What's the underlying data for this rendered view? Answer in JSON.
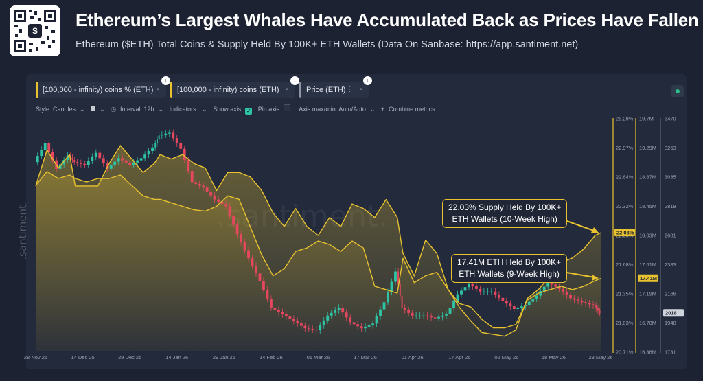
{
  "header": {
    "title": "Ethereum’s Largest Whales Have Accumulated Back as Prices Have Fallen",
    "subtitle": "Ethereum ($ETH) Total Coins & Supply Held By 100K+ ETH Wallets (Data On Sanbase: https://app.santiment.net)"
  },
  "metrics": [
    {
      "label": "[100,000 - infinity) coins % (ETH)",
      "color": "#e8c22f"
    },
    {
      "label": "[100,000 - infinity) coins (ETH)",
      "color": "#e8c22f"
    },
    {
      "label": "Price (ETH)",
      "color": "#8f96a6"
    }
  ],
  "toolbar": {
    "style": "Style: Candles",
    "interval": "Interval: 12h",
    "indicators": "Indicators:",
    "show_axis": "Show axis",
    "pin_axis": "Pin axis",
    "axis_minmax": "Axis max/min: Auto/Auto",
    "combine": "Combine metrics"
  },
  "watermark": ".santiment.",
  "colors": {
    "accent": "#e8c22f",
    "up": "#2ec4a3",
    "down": "#e5475e",
    "background": "#1d2233",
    "panel": "#232a3b"
  },
  "chart_data": {
    "type": "line",
    "title": "Ethereum’s Largest Whales Have Accumulated Back as Prices Have Fallen",
    "x_ticks": [
      "28 Nov 25",
      "14 Dec 25",
      "29 Dec 25",
      "14 Jan 26",
      "29 Jan 26",
      "14 Feb 26",
      "01 Mar 26",
      "17 Mar 26",
      "01 Apr 26",
      "17 Apr 26",
      "02 May 26",
      "18 May 26",
      "28 May 26"
    ],
    "axes": {
      "supply_pct": {
        "ticks": [
          "23.29%",
          "22.97%",
          "22.64%",
          "22.32%",
          "22.00%",
          "21.68%",
          "21.35%",
          "21.03%",
          "20.71%"
        ],
        "range": [
          20.71,
          23.29
        ]
      },
      "coins": {
        "ticks": [
          "19.7M",
          "19.29M",
          "18.87M",
          "18.45M",
          "18.03M",
          "17.61M",
          "17.19M",
          "16.78M",
          "16.36M"
        ],
        "range": [
          16.36,
          19.7
        ]
      },
      "price": {
        "ticks": [
          "3470",
          "3253",
          "3035",
          "2818",
          "2601",
          "2383",
          "2166",
          "1948",
          "1731"
        ],
        "range": [
          1731,
          3470
        ]
      }
    },
    "series": [
      {
        "name": "[100,000 - infinity) coins % (ETH)",
        "color": "#e8c22f",
        "x": [
          0,
          2,
          4,
          6,
          7,
          9,
          11,
          13,
          15,
          17,
          19,
          21,
          22,
          24,
          26,
          28,
          30,
          32,
          34,
          36,
          38,
          40,
          42,
          44,
          46,
          48,
          50,
          52,
          54,
          56,
          58,
          60,
          62,
          64,
          65,
          67,
          69,
          71,
          73,
          75,
          77,
          79,
          81,
          83,
          85,
          87,
          89,
          91,
          93,
          95,
          97,
          99,
          100
        ],
        "values": [
          22.55,
          22.95,
          22.75,
          22.9,
          22.55,
          22.55,
          22.55,
          22.8,
          23.0,
          22.85,
          22.7,
          22.8,
          22.9,
          22.85,
          22.9,
          22.8,
          22.75,
          22.5,
          22.7,
          22.7,
          22.65,
          22.5,
          22.25,
          22.1,
          22.3,
          22.1,
          22.0,
          22.2,
          22.1,
          22.35,
          22.3,
          22.2,
          22.4,
          22.2,
          21.8,
          21.55,
          21.95,
          21.8,
          21.4,
          21.2,
          21.05,
          20.92,
          20.9,
          20.88,
          20.95,
          21.3,
          21.4,
          21.55,
          21.7,
          21.75,
          21.85,
          22.0,
          22.03
        ]
      },
      {
        "name": "[100,000 - infinity) coins (ETH)",
        "color": "#e8c22f",
        "x": [
          0,
          2,
          4,
          6,
          7,
          9,
          11,
          13,
          15,
          17,
          19,
          21,
          22,
          24,
          26,
          28,
          30,
          32,
          34,
          36,
          38,
          40,
          42,
          44,
          46,
          48,
          50,
          52,
          54,
          56,
          58,
          60,
          62,
          64,
          65,
          67,
          69,
          71,
          73,
          75,
          77,
          79,
          81,
          83,
          85,
          87,
          89,
          91,
          93,
          95,
          97,
          99,
          100
        ],
        "values": [
          18.75,
          18.95,
          18.85,
          18.9,
          18.85,
          18.8,
          18.85,
          18.85,
          18.9,
          18.75,
          18.6,
          18.55,
          18.55,
          18.5,
          18.45,
          18.4,
          18.38,
          18.45,
          18.6,
          18.55,
          18.15,
          17.75,
          17.45,
          17.55,
          17.8,
          17.85,
          17.95,
          17.9,
          17.8,
          17.95,
          17.85,
          17.3,
          17.25,
          17.2,
          17.7,
          17.35,
          17.45,
          17.5,
          17.25,
          17.05,
          17.0,
          16.82,
          16.7,
          16.7,
          16.75,
          17.1,
          17.2,
          17.25,
          17.3,
          17.25,
          17.3,
          17.38,
          17.41
        ]
      },
      {
        "name": "Price (ETH)",
        "color": "#2ec4a3",
        "x": [
          0,
          2,
          4,
          6,
          7,
          9,
          11,
          13,
          15,
          17,
          19,
          21,
          22,
          24,
          26,
          28,
          30,
          32,
          34,
          36,
          38,
          40,
          42,
          44,
          46,
          48,
          50,
          52,
          54,
          56,
          58,
          60,
          62,
          64,
          65,
          67,
          69,
          71,
          73,
          75,
          77,
          79,
          81,
          83,
          85,
          87,
          89,
          91,
          93,
          95,
          97,
          99,
          100
        ],
        "values": [
          3150,
          3290,
          3100,
          3200,
          3150,
          3130,
          3220,
          3100,
          3180,
          3130,
          3180,
          3260,
          3350,
          3370,
          3250,
          3000,
          2960,
          2870,
          2820,
          2610,
          2430,
          2260,
          2060,
          2010,
          1960,
          1905,
          1890,
          2000,
          2060,
          1950,
          1905,
          1940,
          2100,
          2330,
          2060,
          2000,
          2000,
          1980,
          2010,
          2160,
          2240,
          2180,
          2180,
          2110,
          2050,
          2080,
          2150,
          2250,
          2200,
          2130,
          2100,
          2075,
          2018
        ]
      }
    ],
    "annotations": [
      {
        "text_line1": "22.03% Supply Held By 100K+",
        "text_line2": "ETH Wallets (10-Week High)",
        "series": "[100,000 - infinity) coins % (ETH)"
      },
      {
        "text_line1": "17.41M ETH Held By 100K+",
        "text_line2": "ETH Wallets (9-Week High)",
        "series": "[100,000 - infinity) coins (ETH)"
      }
    ],
    "last_values": {
      "supply_pct": "22.03%",
      "coins": "17.41M",
      "price": "2018"
    },
    "grid": false,
    "legend": "top-left"
  }
}
